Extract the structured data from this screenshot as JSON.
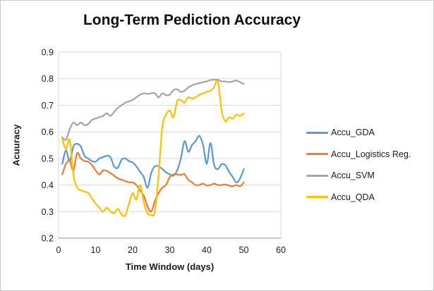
{
  "chart_data": {
    "type": "line",
    "title": "Long-Term Pediction Accuracy",
    "xlabel": "Time Window (days)",
    "ylabel": "Acuuracy",
    "xlim": [
      0,
      60
    ],
    "ylim": [
      0.2,
      0.9
    ],
    "x_ticks": [
      0,
      10,
      20,
      30,
      40,
      50,
      60
    ],
    "y_ticks": [
      0.2,
      0.3,
      0.4,
      0.5,
      0.6,
      0.7,
      0.8,
      0.9
    ],
    "grid": "horizontal-only",
    "legend_position": "right",
    "x": [
      1,
      2,
      3,
      4,
      5,
      6,
      7,
      8,
      9,
      10,
      11,
      12,
      13,
      14,
      15,
      16,
      17,
      18,
      19,
      20,
      21,
      22,
      23,
      24,
      25,
      26,
      27,
      28,
      29,
      30,
      31,
      32,
      33,
      34,
      35,
      36,
      37,
      38,
      39,
      40,
      41,
      42,
      43,
      44,
      45,
      46,
      47,
      48,
      49,
      50
    ],
    "series": [
      {
        "name": "Accu_GDA",
        "color": "#5B9BD5",
        "values": [
          0.48,
          0.53,
          0.49,
          0.545,
          0.555,
          0.545,
          0.51,
          0.5,
          0.49,
          0.488,
          0.5,
          0.505,
          0.51,
          0.505,
          0.47,
          0.465,
          0.495,
          0.5,
          0.49,
          0.485,
          0.47,
          0.45,
          0.43,
          0.39,
          0.445,
          0.47,
          0.47,
          0.46,
          0.448,
          0.44,
          0.435,
          0.455,
          0.5,
          0.565,
          0.525,
          0.55,
          0.565,
          0.585,
          0.55,
          0.48,
          0.558,
          0.475,
          0.46,
          0.478,
          0.475,
          0.45,
          0.43,
          0.41,
          0.425,
          0.46
        ]
      },
      {
        "name": "Accu_Logistics Reg.",
        "color": "#ED7D31",
        "values": [
          0.44,
          0.48,
          0.49,
          0.455,
          0.52,
          0.5,
          0.49,
          0.488,
          0.475,
          0.455,
          0.44,
          0.455,
          0.453,
          0.445,
          0.435,
          0.425,
          0.42,
          0.415,
          0.41,
          0.41,
          0.4,
          0.38,
          0.36,
          0.32,
          0.3,
          0.34,
          0.37,
          0.39,
          0.4,
          0.43,
          0.44,
          0.44,
          0.438,
          0.44,
          0.42,
          0.41,
          0.4,
          0.4,
          0.405,
          0.398,
          0.4,
          0.405,
          0.4,
          0.4,
          0.402,
          0.398,
          0.395,
          0.4,
          0.395,
          0.41
        ]
      },
      {
        "name": "Accu_SVM",
        "color": "#A5A5A5",
        "values": [
          0.58,
          0.57,
          0.61,
          0.635,
          0.625,
          0.635,
          0.625,
          0.63,
          0.645,
          0.65,
          0.655,
          0.66,
          0.67,
          0.66,
          0.675,
          0.69,
          0.7,
          0.71,
          0.715,
          0.72,
          0.73,
          0.74,
          0.745,
          0.743,
          0.745,
          0.745,
          0.73,
          0.745,
          0.738,
          0.74,
          0.757,
          0.76,
          0.75,
          0.755,
          0.767,
          0.775,
          0.78,
          0.783,
          0.787,
          0.79,
          0.795,
          0.796,
          0.796,
          0.79,
          0.79,
          0.787,
          0.79,
          0.793,
          0.787,
          0.78
        ]
      },
      {
        "name": "Accu_QDA",
        "color": "#FFC000",
        "values": [
          0.575,
          0.535,
          0.57,
          0.44,
          0.39,
          0.38,
          0.375,
          0.37,
          0.35,
          0.33,
          0.315,
          0.3,
          0.315,
          0.3,
          0.295,
          0.31,
          0.29,
          0.285,
          0.33,
          0.37,
          0.345,
          0.4,
          0.335,
          0.295,
          0.287,
          0.3,
          0.44,
          0.62,
          0.665,
          0.68,
          0.655,
          0.715,
          0.72,
          0.71,
          0.73,
          0.725,
          0.73,
          0.74,
          0.745,
          0.75,
          0.755,
          0.77,
          0.79,
          0.68,
          0.64,
          0.655,
          0.65,
          0.665,
          0.66,
          0.67
        ]
      }
    ],
    "colors": {
      "gridline": "#d9d9d9",
      "plot_border": "#d9d9d9",
      "x_axis_line": "#a6a6a6",
      "tick_text": "#1a1a1a",
      "title_text": "#0d0d0d"
    }
  }
}
